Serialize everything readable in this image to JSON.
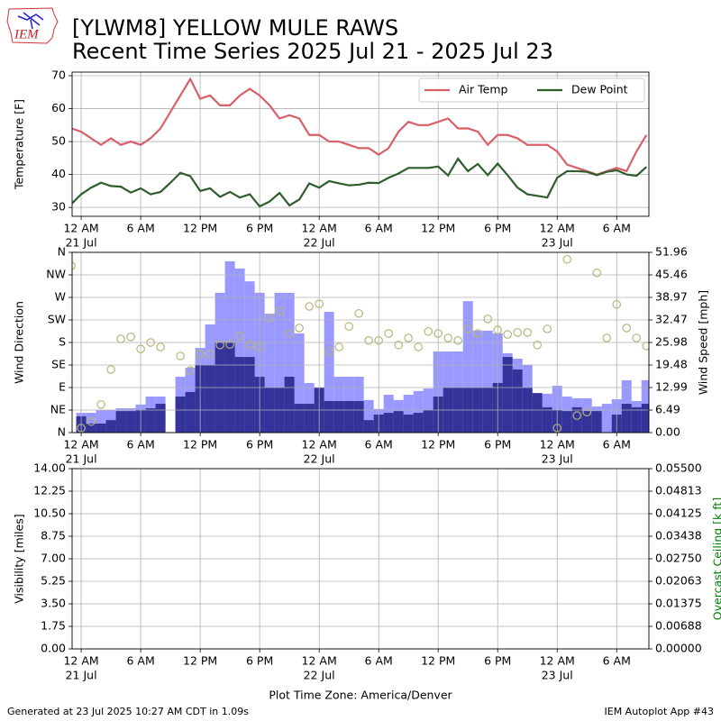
{
  "header": {
    "logo": "IEM",
    "title": "[YLWM8] YELLOW MULE RAWS",
    "subtitle": "Recent Time Series 2025 Jul 21 - 2025 Jul 23"
  },
  "footer": {
    "left": "Generated at 23 Jul 2025 10:27 AM CDT in 1.09s",
    "right": "IEM Autoplot App #43"
  },
  "chart_data": [
    {
      "type": "line",
      "ylabel": "Temperature [F]",
      "grid": true,
      "legend": "upper right",
      "xlim": [
        "2025-07-20T23:05",
        "2025-07-23T09:15"
      ],
      "xticks": [
        {
          "value": "2025-07-21T00:00",
          "label": "12 AM",
          "sublabel": "21 Jul"
        },
        {
          "value": "2025-07-21T06:00",
          "label": "6 AM"
        },
        {
          "value": "2025-07-21T12:00",
          "label": "12 PM"
        },
        {
          "value": "2025-07-21T18:00",
          "label": "6 PM"
        },
        {
          "value": "2025-07-22T00:00",
          "label": "12 AM",
          "sublabel": "22 Jul"
        },
        {
          "value": "2025-07-22T06:00",
          "label": "6 AM"
        },
        {
          "value": "2025-07-22T12:00",
          "label": "12 PM"
        },
        {
          "value": "2025-07-22T18:00",
          "label": "6 PM"
        },
        {
          "value": "2025-07-23T00:00",
          "label": "12 AM",
          "sublabel": "23 Jul"
        },
        {
          "value": "2025-07-23T06:00",
          "label": "6 AM"
        }
      ],
      "ylim": [
        27.3,
        71.1
      ],
      "yticks": [
        30,
        40,
        50,
        60,
        70
      ],
      "x": [
        "2025-07-20T23:00",
        "2025-07-21T00:00",
        "2025-07-21T01:00",
        "2025-07-21T02:00",
        "2025-07-21T03:00",
        "2025-07-21T04:00",
        "2025-07-21T05:00",
        "2025-07-21T06:00",
        "2025-07-21T07:00",
        "2025-07-21T08:00",
        "2025-07-21T09:00",
        "2025-07-21T10:00",
        "2025-07-21T11:00",
        "2025-07-21T12:00",
        "2025-07-21T13:00",
        "2025-07-21T14:00",
        "2025-07-21T15:00",
        "2025-07-21T16:00",
        "2025-07-21T17:00",
        "2025-07-21T18:00",
        "2025-07-21T19:00",
        "2025-07-21T20:00",
        "2025-07-21T21:00",
        "2025-07-21T22:00",
        "2025-07-21T23:00",
        "2025-07-22T00:00",
        "2025-07-22T01:00",
        "2025-07-22T02:00",
        "2025-07-22T03:00",
        "2025-07-22T04:00",
        "2025-07-22T05:00",
        "2025-07-22T06:00",
        "2025-07-22T07:00",
        "2025-07-22T08:00",
        "2025-07-22T09:00",
        "2025-07-22T10:00",
        "2025-07-22T11:00",
        "2025-07-22T12:00",
        "2025-07-22T13:00",
        "2025-07-22T14:00",
        "2025-07-22T15:00",
        "2025-07-22T16:00",
        "2025-07-22T17:00",
        "2025-07-22T18:00",
        "2025-07-22T19:00",
        "2025-07-22T20:00",
        "2025-07-22T21:00",
        "2025-07-22T22:00",
        "2025-07-22T23:00",
        "2025-07-23T00:00",
        "2025-07-23T01:00",
        "2025-07-23T02:00",
        "2025-07-23T03:00",
        "2025-07-23T04:00",
        "2025-07-23T05:00",
        "2025-07-23T06:00",
        "2025-07-23T07:00",
        "2025-07-23T08:00",
        "2025-07-23T09:00"
      ],
      "series": [
        {
          "name": "Air Temp",
          "color": "#d95f69",
          "values": [
            54,
            53,
            51,
            49,
            51,
            49,
            50,
            49,
            51,
            54,
            59,
            64,
            69,
            63,
            64,
            61,
            61,
            64,
            66,
            64,
            61,
            57,
            58,
            57,
            52,
            52,
            50,
            50,
            49,
            48,
            48,
            46,
            48,
            53,
            56,
            55,
            55,
            56,
            57,
            54,
            54,
            53,
            49,
            52,
            52,
            51,
            49,
            49,
            49,
            47,
            43,
            42,
            41,
            40,
            41,
            42,
            41,
            47,
            52
          ]
        },
        {
          "name": "Dew Point",
          "color": "#2e5e2e",
          "values": [
            31,
            34,
            36,
            37.5,
            36.5,
            36.3,
            34.5,
            35.8,
            34,
            34.7,
            37.5,
            40.5,
            39.5,
            35,
            35.8,
            33.2,
            34.7,
            33,
            34,
            30.3,
            31.8,
            34.4,
            30.6,
            32.4,
            37.3,
            36,
            38,
            37.3,
            36.7,
            36.9,
            37.5,
            37.4,
            39,
            40.3,
            42,
            42,
            42,
            42.4,
            39.7,
            44.8,
            41,
            43.2,
            39.8,
            43.3,
            39.8,
            36,
            34,
            33.5,
            33,
            39,
            41,
            41,
            40.8,
            39.8,
            40.8,
            41.3,
            40,
            39.6,
            42.3
          ]
        }
      ]
    },
    {
      "type": "bar",
      "ylabel": "Wind Direction",
      "y2label": "Wind Speed [mph]",
      "grid": true,
      "xlim": [
        "2025-07-20T23:05",
        "2025-07-23T09:15"
      ],
      "xticks": [
        {
          "value": "2025-07-21T00:00",
          "label": "12 AM",
          "sublabel": "21 Jul"
        },
        {
          "value": "2025-07-21T06:00",
          "label": "6 AM"
        },
        {
          "value": "2025-07-21T12:00",
          "label": "12 PM"
        },
        {
          "value": "2025-07-21T18:00",
          "label": "6 PM"
        },
        {
          "value": "2025-07-22T00:00",
          "label": "12 AM",
          "sublabel": "22 Jul"
        },
        {
          "value": "2025-07-22T06:00",
          "label": "6 AM"
        },
        {
          "value": "2025-07-22T12:00",
          "label": "12 PM"
        },
        {
          "value": "2025-07-22T18:00",
          "label": "6 PM"
        },
        {
          "value": "2025-07-23T00:00",
          "label": "12 AM",
          "sublabel": "23 Jul"
        },
        {
          "value": "2025-07-23T06:00",
          "label": "6 AM"
        }
      ],
      "ylim": [
        0,
        360
      ],
      "yticks": [
        {
          "value": 0,
          "label": "N"
        },
        {
          "value": 45,
          "label": "NE"
        },
        {
          "value": 90,
          "label": "E"
        },
        {
          "value": 135,
          "label": "SE"
        },
        {
          "value": 180,
          "label": "S"
        },
        {
          "value": 225,
          "label": "SW"
        },
        {
          "value": 270,
          "label": "W"
        },
        {
          "value": 315,
          "label": "NW"
        },
        {
          "value": 360,
          "label": "N"
        }
      ],
      "y2lim": [
        0,
        51.96
      ],
      "y2ticks": [
        {
          "value": 0,
          "label": "0.00"
        },
        6.49,
        12.99,
        19.48,
        25.98,
        32.47,
        38.97,
        45.46,
        51.96
      ],
      "x": [
        "2025-07-20T23:00",
        "2025-07-21T00:00",
        "2025-07-21T01:00",
        "2025-07-21T02:00",
        "2025-07-21T03:00",
        "2025-07-21T04:00",
        "2025-07-21T05:00",
        "2025-07-21T06:00",
        "2025-07-21T07:00",
        "2025-07-21T08:00",
        "2025-07-21T09:00",
        "2025-07-21T10:00",
        "2025-07-21T11:00",
        "2025-07-21T12:00",
        "2025-07-21T13:00",
        "2025-07-21T14:00",
        "2025-07-21T15:00",
        "2025-07-21T16:00",
        "2025-07-21T17:00",
        "2025-07-21T18:00",
        "2025-07-21T19:00",
        "2025-07-21T20:00",
        "2025-07-21T21:00",
        "2025-07-21T22:00",
        "2025-07-21T23:00",
        "2025-07-22T00:00",
        "2025-07-22T01:00",
        "2025-07-22T02:00",
        "2025-07-22T03:00",
        "2025-07-22T04:00",
        "2025-07-22T05:00",
        "2025-07-22T06:00",
        "2025-07-22T07:00",
        "2025-07-22T08:00",
        "2025-07-22T09:00",
        "2025-07-22T10:00",
        "2025-07-22T11:00",
        "2025-07-22T12:00",
        "2025-07-22T13:00",
        "2025-07-22T14:00",
        "2025-07-22T15:00",
        "2025-07-22T16:00",
        "2025-07-22T17:00",
        "2025-07-22T18:00",
        "2025-07-22T19:00",
        "2025-07-22T20:00",
        "2025-07-22T21:00",
        "2025-07-22T22:00",
        "2025-07-22T23:00",
        "2025-07-23T00:00",
        "2025-07-23T01:00",
        "2025-07-23T02:00",
        "2025-07-23T03:00",
        "2025-07-23T04:00",
        "2025-07-23T05:00",
        "2025-07-23T06:00",
        "2025-07-23T07:00",
        "2025-07-23T08:00",
        "2025-07-23T09:00"
      ],
      "series": [
        {
          "type": "bar",
          "axis": "y2",
          "color": "#9999ff",
          "values": [
            null,
            5.7,
            5.7,
            6.5,
            6.5,
            7.0,
            7.0,
            8.1,
            10.4,
            10.4,
            null,
            16.1,
            18.7,
            24.4,
            31.2,
            40.3,
            49.4,
            47.3,
            43.6,
            40.3,
            34.3,
            40.3,
            40.3,
            28.6,
            14.3,
            12.5,
            34.8,
            16.1,
            16.1,
            16.1,
            9.4,
            6.8,
            10.9,
            9.4,
            10.9,
            12.0,
            12.7,
            23.4,
            23.4,
            23.4,
            37.9,
            29.4,
            29.4,
            28.6,
            22.9,
            21.3,
            19.5,
            10.4,
            11.2,
            13.5,
            10.4,
            9.9,
            9.9,
            7.5,
            8.3,
            9.6,
            15.1,
            9.1,
            15.1
          ]
        },
        {
          "type": "bar",
          "axis": "y2",
          "color": "#333399",
          "values": [
            null,
            4.7,
            2.6,
            2.6,
            3.6,
            6.2,
            6.2,
            6.5,
            7.0,
            8.3,
            null,
            10.4,
            11.7,
            19.5,
            19.5,
            26.0,
            26.0,
            21.8,
            21.8,
            16.1,
            13.0,
            13.0,
            16.1,
            8.3,
            8.3,
            13.0,
            9.1,
            9.1,
            9.1,
            9.1,
            3.6,
            5.2,
            5.7,
            6.2,
            5.2,
            5.7,
            6.5,
            10.4,
            13.0,
            13.0,
            13.0,
            13.0,
            13.0,
            14.3,
            21.8,
            18.2,
            13.0,
            11.4,
            7.3,
            6.5,
            6.2,
            7.3,
            6.2,
            6.2,
            0,
            5.2,
            8.3,
            7.3,
            8.3
          ]
        },
        {
          "type": "scatter",
          "color": "#b5b57a",
          "values": [
            333,
            9,
            22,
            56,
            126,
            187,
            191,
            167,
            180,
            171,
            null,
            153,
            124,
            157,
            157,
            175,
            176,
            193,
            175,
            171,
            229,
            243,
            198,
            209,
            252,
            257,
            162,
            171,
            212,
            238,
            184,
            184,
            198,
            175,
            189,
            171,
            202,
            198,
            189,
            184,
            207,
            198,
            227,
            205,
            196,
            200,
            200,
            175,
            207,
            9,
            346,
            34,
            41,
            319,
            189,
            256,
            209,
            189,
            173
          ]
        }
      ]
    },
    {
      "type": "line",
      "ylabel": "Visibility [miles]",
      "y2label": "Overcast Ceiling [k ft]",
      "y2label_color": "green",
      "xlabel": "Plot Time Zone: America/Denver",
      "grid": true,
      "xlim": [
        "2025-07-20T23:05",
        "2025-07-23T09:15"
      ],
      "xticks": [
        {
          "value": "2025-07-21T00:00",
          "label": "12 AM",
          "sublabel": "21 Jul"
        },
        {
          "value": "2025-07-21T06:00",
          "label": "6 AM"
        },
        {
          "value": "2025-07-21T12:00",
          "label": "12 PM"
        },
        {
          "value": "2025-07-21T18:00",
          "label": "6 PM"
        },
        {
          "value": "2025-07-22T00:00",
          "label": "12 AM",
          "sublabel": "22 Jul"
        },
        {
          "value": "2025-07-22T06:00",
          "label": "6 AM"
        },
        {
          "value": "2025-07-22T12:00",
          "label": "12 PM"
        },
        {
          "value": "2025-07-22T18:00",
          "label": "6 PM"
        },
        {
          "value": "2025-07-23T00:00",
          "label": "12 AM",
          "sublabel": "23 Jul"
        },
        {
          "value": "2025-07-23T06:00",
          "label": "6 AM"
        }
      ],
      "ylim": [
        0,
        14
      ],
      "yticks": [
        {
          "value": 0,
          "label": "0.00"
        },
        1.75,
        {
          "value": 3.5,
          "label": "3.50"
        },
        5.25,
        {
          "value": 7,
          "label": "7.00"
        },
        8.75,
        {
          "value": 10.5,
          "label": "10.50"
        },
        12.25,
        {
          "value": 14,
          "label": "14.00"
        }
      ],
      "y2lim": [
        0,
        0.055
      ],
      "y2ticks": [
        {
          "value": 0,
          "label": "0.00000"
        },
        {
          "value": 0.006875,
          "label": "0.00688"
        },
        {
          "value": 0.01375,
          "label": "0.01375"
        },
        {
          "value": 0.020625,
          "label": "0.02063"
        },
        {
          "value": 0.0275,
          "label": "0.02750"
        },
        {
          "value": 0.034375,
          "label": "0.03438"
        },
        {
          "value": 0.04125,
          "label": "0.04125"
        },
        {
          "value": 0.048125,
          "label": "0.04813"
        },
        {
          "value": 0.055,
          "label": "0.05500"
        }
      ],
      "series": []
    }
  ]
}
